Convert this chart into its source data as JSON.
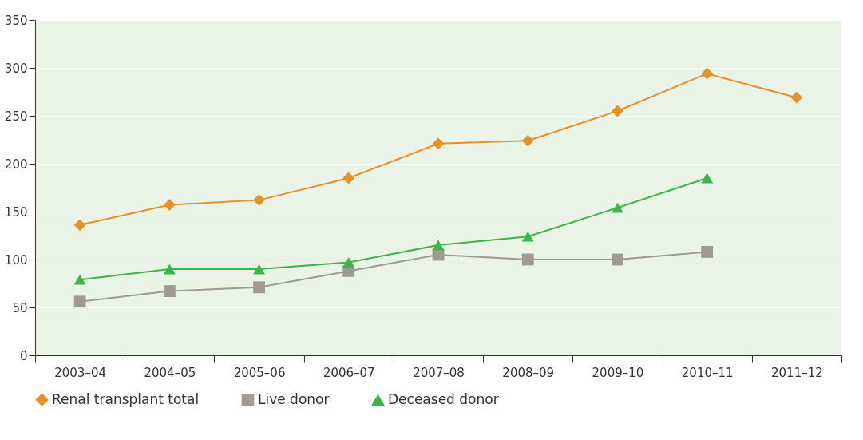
{
  "chart_data": {
    "type": "line",
    "categories": [
      "2003–04",
      "2004–05",
      "2005–06",
      "2006–07",
      "2007–08",
      "2008–09",
      "2009–10",
      "2010–11",
      "2011–12"
    ],
    "series": [
      {
        "name": "Renal transplant total",
        "color": "#e8912a",
        "marker": "diamond",
        "values": [
          136,
          157,
          162,
          185,
          221,
          224,
          255,
          294,
          269
        ]
      },
      {
        "name": "Live donor",
        "color": "#a09a93",
        "marker": "square",
        "values": [
          56,
          67,
          71,
          88,
          105,
          100,
          100,
          108,
          null
        ]
      },
      {
        "name": "Deceased donor",
        "color": "#3cb54a",
        "marker": "triangle",
        "values": [
          79,
          90,
          90,
          97,
          115,
          124,
          154,
          185,
          null
        ]
      }
    ],
    "ylim": [
      0,
      350
    ],
    "yticks": [
      0,
      50,
      100,
      150,
      200,
      250,
      300,
      350
    ],
    "grid": "y",
    "legend": "bottom",
    "line_style": "solid"
  }
}
